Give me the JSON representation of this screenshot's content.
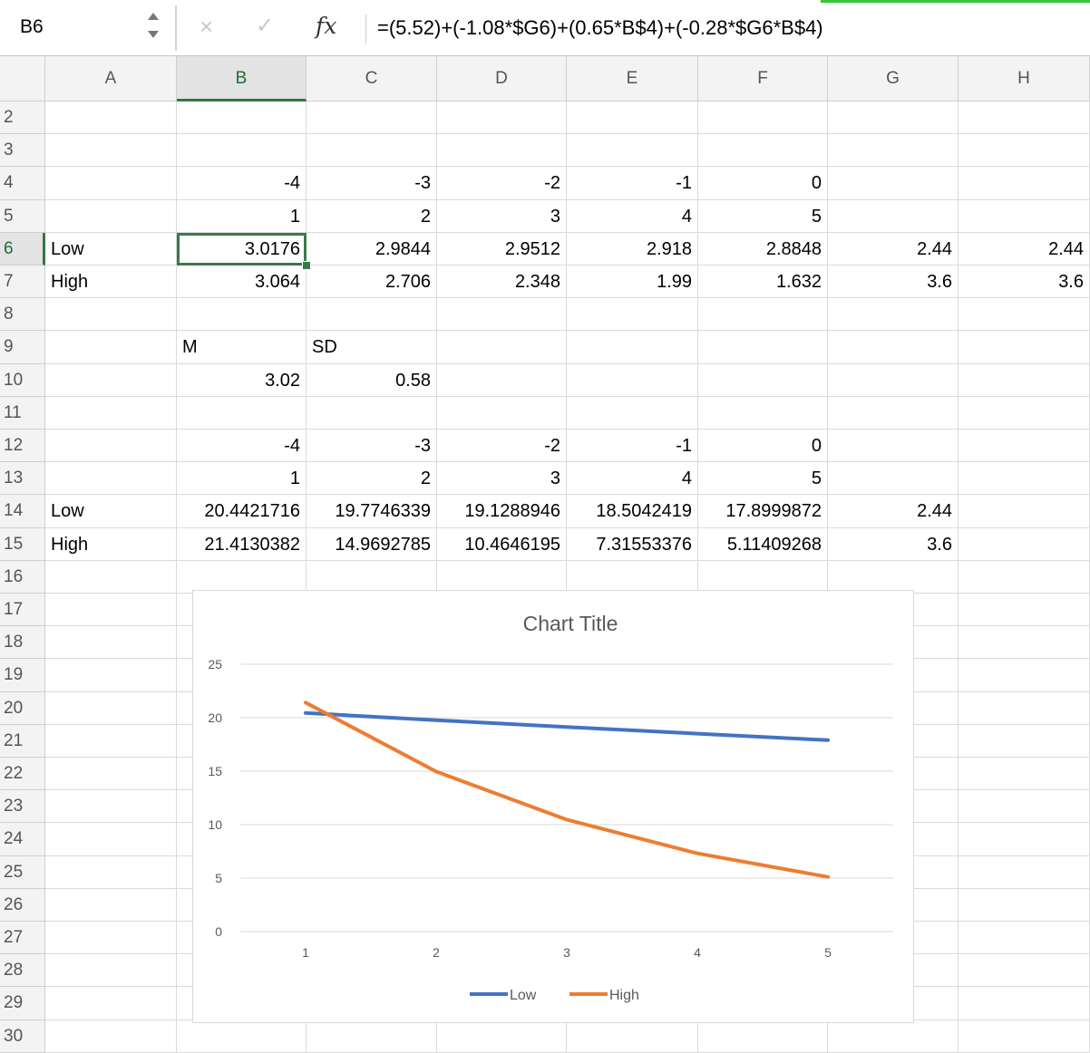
{
  "formula_bar": {
    "name_box": "B6",
    "cancel_icon": "×",
    "enter_icon": "✓",
    "fx_label": "fx",
    "formula": "=(5.52)+(-1.08*$G6)+(0.65*B$4)+(-0.28*$G6*B$4)"
  },
  "columns": [
    "A",
    "B",
    "C",
    "D",
    "E",
    "F",
    "G",
    "H"
  ],
  "row_numbers": [
    "2",
    "3",
    "4",
    "5",
    "6",
    "7",
    "8",
    "9",
    "10",
    "11",
    "12",
    "13",
    "14",
    "15",
    "16",
    "17",
    "18",
    "19",
    "20",
    "21",
    "22",
    "23",
    "24",
    "25",
    "26",
    "27",
    "28",
    "29",
    "30"
  ],
  "rows": {
    "r2": [
      "",
      "",
      "",
      "",
      "",
      "",
      "",
      ""
    ],
    "r3": [
      "",
      "",
      "",
      "",
      "",
      "",
      "",
      ""
    ],
    "r4": [
      "",
      "-4",
      "-3",
      "-2",
      "-1",
      "0",
      "",
      ""
    ],
    "r5": [
      "",
      "1",
      "2",
      "3",
      "4",
      "5",
      "",
      ""
    ],
    "r6": [
      "Low",
      "3.0176",
      "2.9844",
      "2.9512",
      "2.918",
      "2.8848",
      "2.44",
      "2.44"
    ],
    "r7": [
      "High",
      "3.064",
      "2.706",
      "2.348",
      "1.99",
      "1.632",
      "3.6",
      "3.6"
    ],
    "r8": [
      "",
      "",
      "",
      "",
      "",
      "",
      "",
      ""
    ],
    "r9": [
      "",
      "M",
      "SD",
      "",
      "",
      "",
      "",
      ""
    ],
    "r10": [
      "",
      "3.02",
      "0.58",
      "",
      "",
      "",
      "",
      ""
    ],
    "r11": [
      "",
      "",
      "",
      "",
      "",
      "",
      "",
      ""
    ],
    "r12": [
      "",
      "-4",
      "-3",
      "-2",
      "-1",
      "0",
      "",
      ""
    ],
    "r13": [
      "",
      "1",
      "2",
      "3",
      "4",
      "5",
      "",
      ""
    ],
    "r14": [
      "Low",
      "20.4421716",
      "19.7746339",
      "19.1288946",
      "18.5042419",
      "17.8999872",
      "2.44",
      ""
    ],
    "r15": [
      "High",
      "21.4130382",
      "14.9692785",
      "10.4646195",
      "7.31553376",
      "5.11409268",
      "3.6",
      ""
    ]
  },
  "selection": {
    "cell": "B6",
    "column": "B",
    "row": "6"
  },
  "chart_data": {
    "type": "line",
    "title": "Chart Title",
    "categories": [
      "1",
      "2",
      "3",
      "4",
      "5"
    ],
    "series": [
      {
        "name": "Low",
        "color": "#4472C4",
        "values": [
          20.4421716,
          19.7746339,
          19.1288946,
          18.5042419,
          17.8999872
        ]
      },
      {
        "name": "High",
        "color": "#ED7D31",
        "values": [
          21.4130382,
          14.9692785,
          10.4646195,
          7.31553376,
          5.11409268
        ]
      }
    ],
    "yticks": [
      "0",
      "5",
      "10",
      "15",
      "20",
      "25"
    ],
    "ylim": [
      0,
      25
    ],
    "xlabel": "",
    "ylabel": "",
    "grid": true,
    "legend": "bottom"
  }
}
